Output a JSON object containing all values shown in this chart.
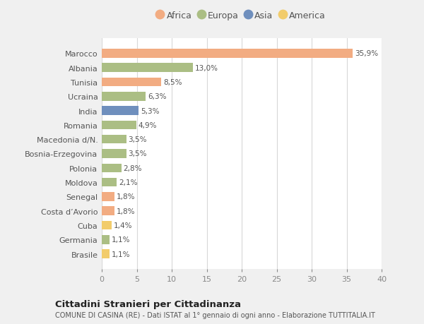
{
  "countries": [
    "Marocco",
    "Albania",
    "Tunisia",
    "Ucraina",
    "India",
    "Romania",
    "Macedonia d/N.",
    "Bosnia-Erzegovina",
    "Polonia",
    "Moldova",
    "Senegal",
    "Costa d’Avorio",
    "Cuba",
    "Germania",
    "Brasile"
  ],
  "values": [
    35.9,
    13.0,
    8.5,
    6.3,
    5.3,
    4.9,
    3.5,
    3.5,
    2.8,
    2.1,
    1.8,
    1.8,
    1.4,
    1.1,
    1.1
  ],
  "labels": [
    "35,9%",
    "13,0%",
    "8,5%",
    "6,3%",
    "5,3%",
    "4,9%",
    "3,5%",
    "3,5%",
    "2,8%",
    "2,1%",
    "1,8%",
    "1,8%",
    "1,4%",
    "1,1%",
    "1,1%"
  ],
  "continents": [
    "Africa",
    "Europa",
    "Africa",
    "Europa",
    "Asia",
    "Europa",
    "Europa",
    "Europa",
    "Europa",
    "Europa",
    "Africa",
    "Africa",
    "America",
    "Europa",
    "America"
  ],
  "continent_colors": {
    "Africa": "#F2AC82",
    "Europa": "#ABBE84",
    "Asia": "#6F8FBD",
    "America": "#F2CC6B"
  },
  "legend_order": [
    "Africa",
    "Europa",
    "Asia",
    "America"
  ],
  "xlim": [
    0,
    40
  ],
  "xticks": [
    0,
    5,
    10,
    15,
    20,
    25,
    30,
    35,
    40
  ],
  "title": "Cittadini Stranieri per Cittadinanza",
  "subtitle": "COMUNE DI CASINA (RE) - Dati ISTAT al 1° gennaio di ogni anno - Elaborazione TUTTITALIA.IT",
  "bg_color": "#f0f0f0",
  "bar_bg_color": "#ffffff"
}
